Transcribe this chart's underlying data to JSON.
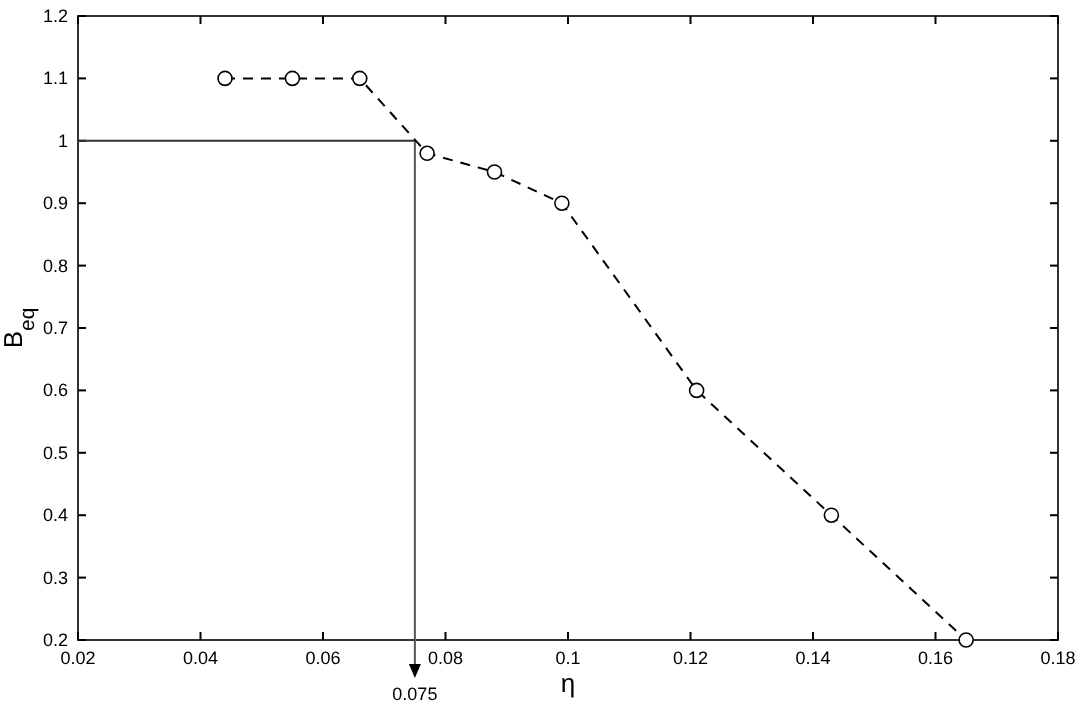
{
  "chart_data": {
    "type": "line",
    "xlabel": "η",
    "ylabel": "B$_{eq}$",
    "x": [
      0.044,
      0.055,
      0.066,
      0.077,
      0.088,
      0.099,
      0.121,
      0.143,
      0.165
    ],
    "series": [
      {
        "color": "#000000",
        "values": [
          1.1,
          1.1,
          1.1,
          0.98,
          0.95,
          0.9,
          0.6,
          0.4,
          0.2
        ]
      }
    ],
    "marker": "circle",
    "line_style": "dashed",
    "grid": false,
    "xlim": [
      0.02,
      0.18
    ],
    "xticks": [
      0.02,
      0.04,
      0.06,
      0.08,
      0.1,
      0.12,
      0.14,
      0.16,
      0.18
    ],
    "ylim": [
      0.2,
      1.2
    ],
    "yticks": [
      0.2,
      0.3,
      0.4,
      0.5,
      0.6,
      0.7,
      0.8,
      0.9,
      1,
      1.1,
      1.2
    ],
    "ref_lines": [
      {
        "axis": "y",
        "value": 1,
        "label": null
      },
      {
        "axis": "x",
        "value": 0.075,
        "label": "0.075"
      }
    ]
  }
}
